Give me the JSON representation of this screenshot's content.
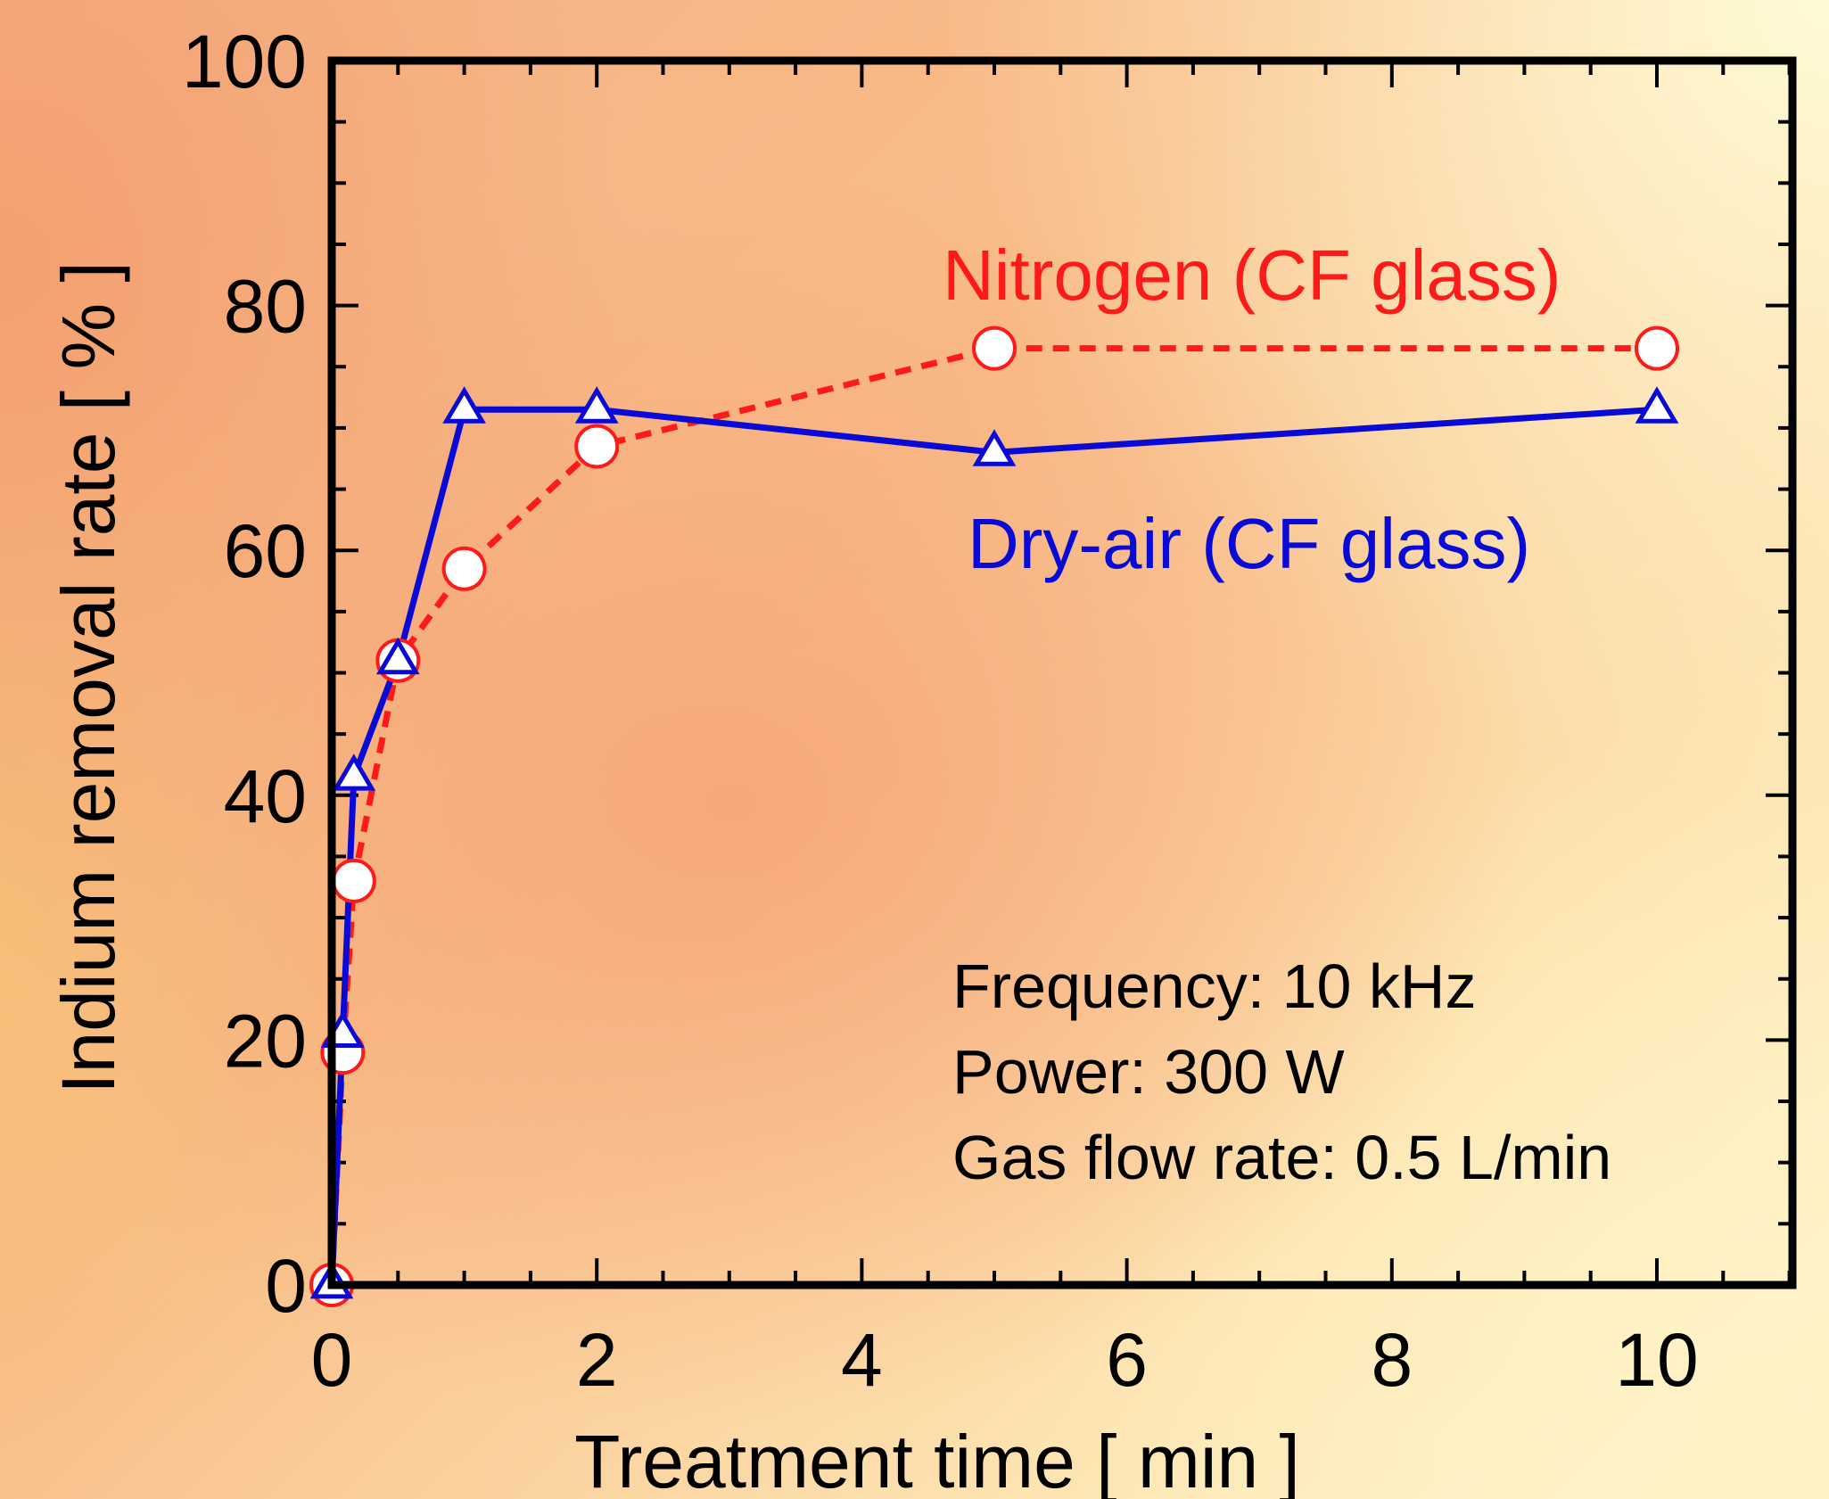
{
  "chart_data": {
    "type": "line",
    "xlabel": "Treatment time [ min ]",
    "ylabel": "Indium removal rate [ % ]",
    "xlim": [
      0,
      11
    ],
    "ylim": [
      0,
      100
    ],
    "xticks": [
      0,
      2,
      4,
      6,
      8,
      10
    ],
    "yticks": [
      0,
      20,
      40,
      60,
      80,
      100
    ],
    "grid": false,
    "series": [
      {
        "name": "Nitrogen (CF glass)",
        "color": "#ff1a1a",
        "line_style": "dashed",
        "marker": "open-circle",
        "x": [
          0,
          0.083,
          0.167,
          0.5,
          1,
          2,
          5,
          10
        ],
        "y": [
          0,
          19,
          33,
          51,
          58.5,
          68.5,
          76.5,
          76.5
        ]
      },
      {
        "name": "Dry-air (CF glass)",
        "color": "#0a0ad6",
        "line_style": "solid",
        "marker": "open-triangle",
        "x": [
          0,
          0.083,
          0.167,
          0.5,
          1,
          2,
          5,
          10
        ],
        "y": [
          0,
          20.5,
          41.5,
          51,
          71.5,
          71.5,
          68,
          71.5
        ]
      }
    ],
    "annotations": [
      "Frequency: 10 kHz",
      "Power: 300 W",
      "Gas flow rate: 0.5 L/min"
    ]
  }
}
